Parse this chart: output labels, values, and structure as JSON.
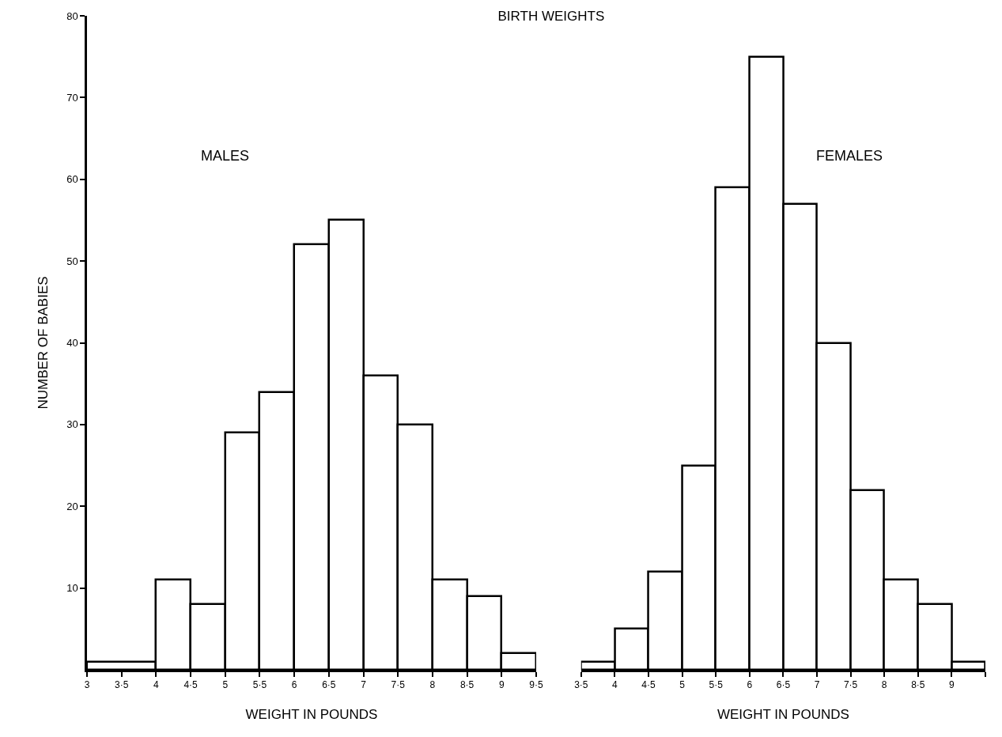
{
  "chart_data": [
    {
      "type": "histogram",
      "title": "BIRTH WEIGHTS",
      "xlabel": "WEIGHT IN POUNDS",
      "ylabel": "NUMBER OF BABIES",
      "annotations": [
        "MALES"
      ],
      "bins": [
        3,
        4,
        4.5,
        5,
        5.5,
        6,
        6.5,
        7,
        7.5,
        8,
        8.5,
        9,
        9.5
      ],
      "values": [
        1,
        11,
        8,
        29,
        34,
        52,
        55,
        36,
        30,
        11,
        9,
        2
      ],
      "color": "#ffffff",
      "xlim": [
        3,
        9.5
      ],
      "xticks": [
        3,
        {
          "value": 3.5,
          "label": "3·5"
        },
        4,
        {
          "value": 4.5,
          "label": "4·5"
        },
        5,
        {
          "value": 5.5,
          "label": "5·5"
        },
        6,
        {
          "value": 6.5,
          "label": "6·5"
        },
        7,
        {
          "value": 7.5,
          "label": "7·5"
        },
        8,
        {
          "value": 8.5,
          "label": "8·5"
        },
        9,
        {
          "value": 9.5,
          "label": "9·5"
        }
      ],
      "ylim": [
        0,
        80
      ],
      "yticks": [
        10,
        20,
        30,
        40,
        50,
        60,
        70,
        80
      ]
    },
    {
      "type": "histogram",
      "xlabel": "WEIGHT IN POUNDS",
      "annotations": [
        "FEMALES"
      ],
      "bins": [
        3.5,
        4,
        4.5,
        5,
        5.5,
        6,
        6.5,
        7,
        7.5,
        8,
        8.5,
        9,
        9.5
      ],
      "values": [
        1,
        5,
        12,
        25,
        59,
        75,
        57,
        40,
        22,
        11,
        8,
        1
      ],
      "color": "#ffffff",
      "xlim": [
        3.5,
        9.5
      ],
      "xticks": [
        {
          "value": 3.5,
          "label": "3·5"
        },
        4,
        {
          "value": 4.5,
          "label": "4·5"
        },
        5,
        {
          "value": 5.5,
          "label": "5·5"
        },
        6,
        {
          "value": 6.5,
          "label": "6·5"
        },
        7,
        {
          "value": 7.5,
          "label": "7·5"
        },
        8,
        {
          "value": 8.5,
          "label": "8·5"
        },
        9,
        {
          "value": 9.5,
          "label": null
        }
      ],
      "ylim": [
        0,
        80
      ],
      "yticks": [
        10,
        20,
        30,
        40,
        50,
        60,
        70,
        80
      ],
      "tick_labels": "x"
    }
  ]
}
